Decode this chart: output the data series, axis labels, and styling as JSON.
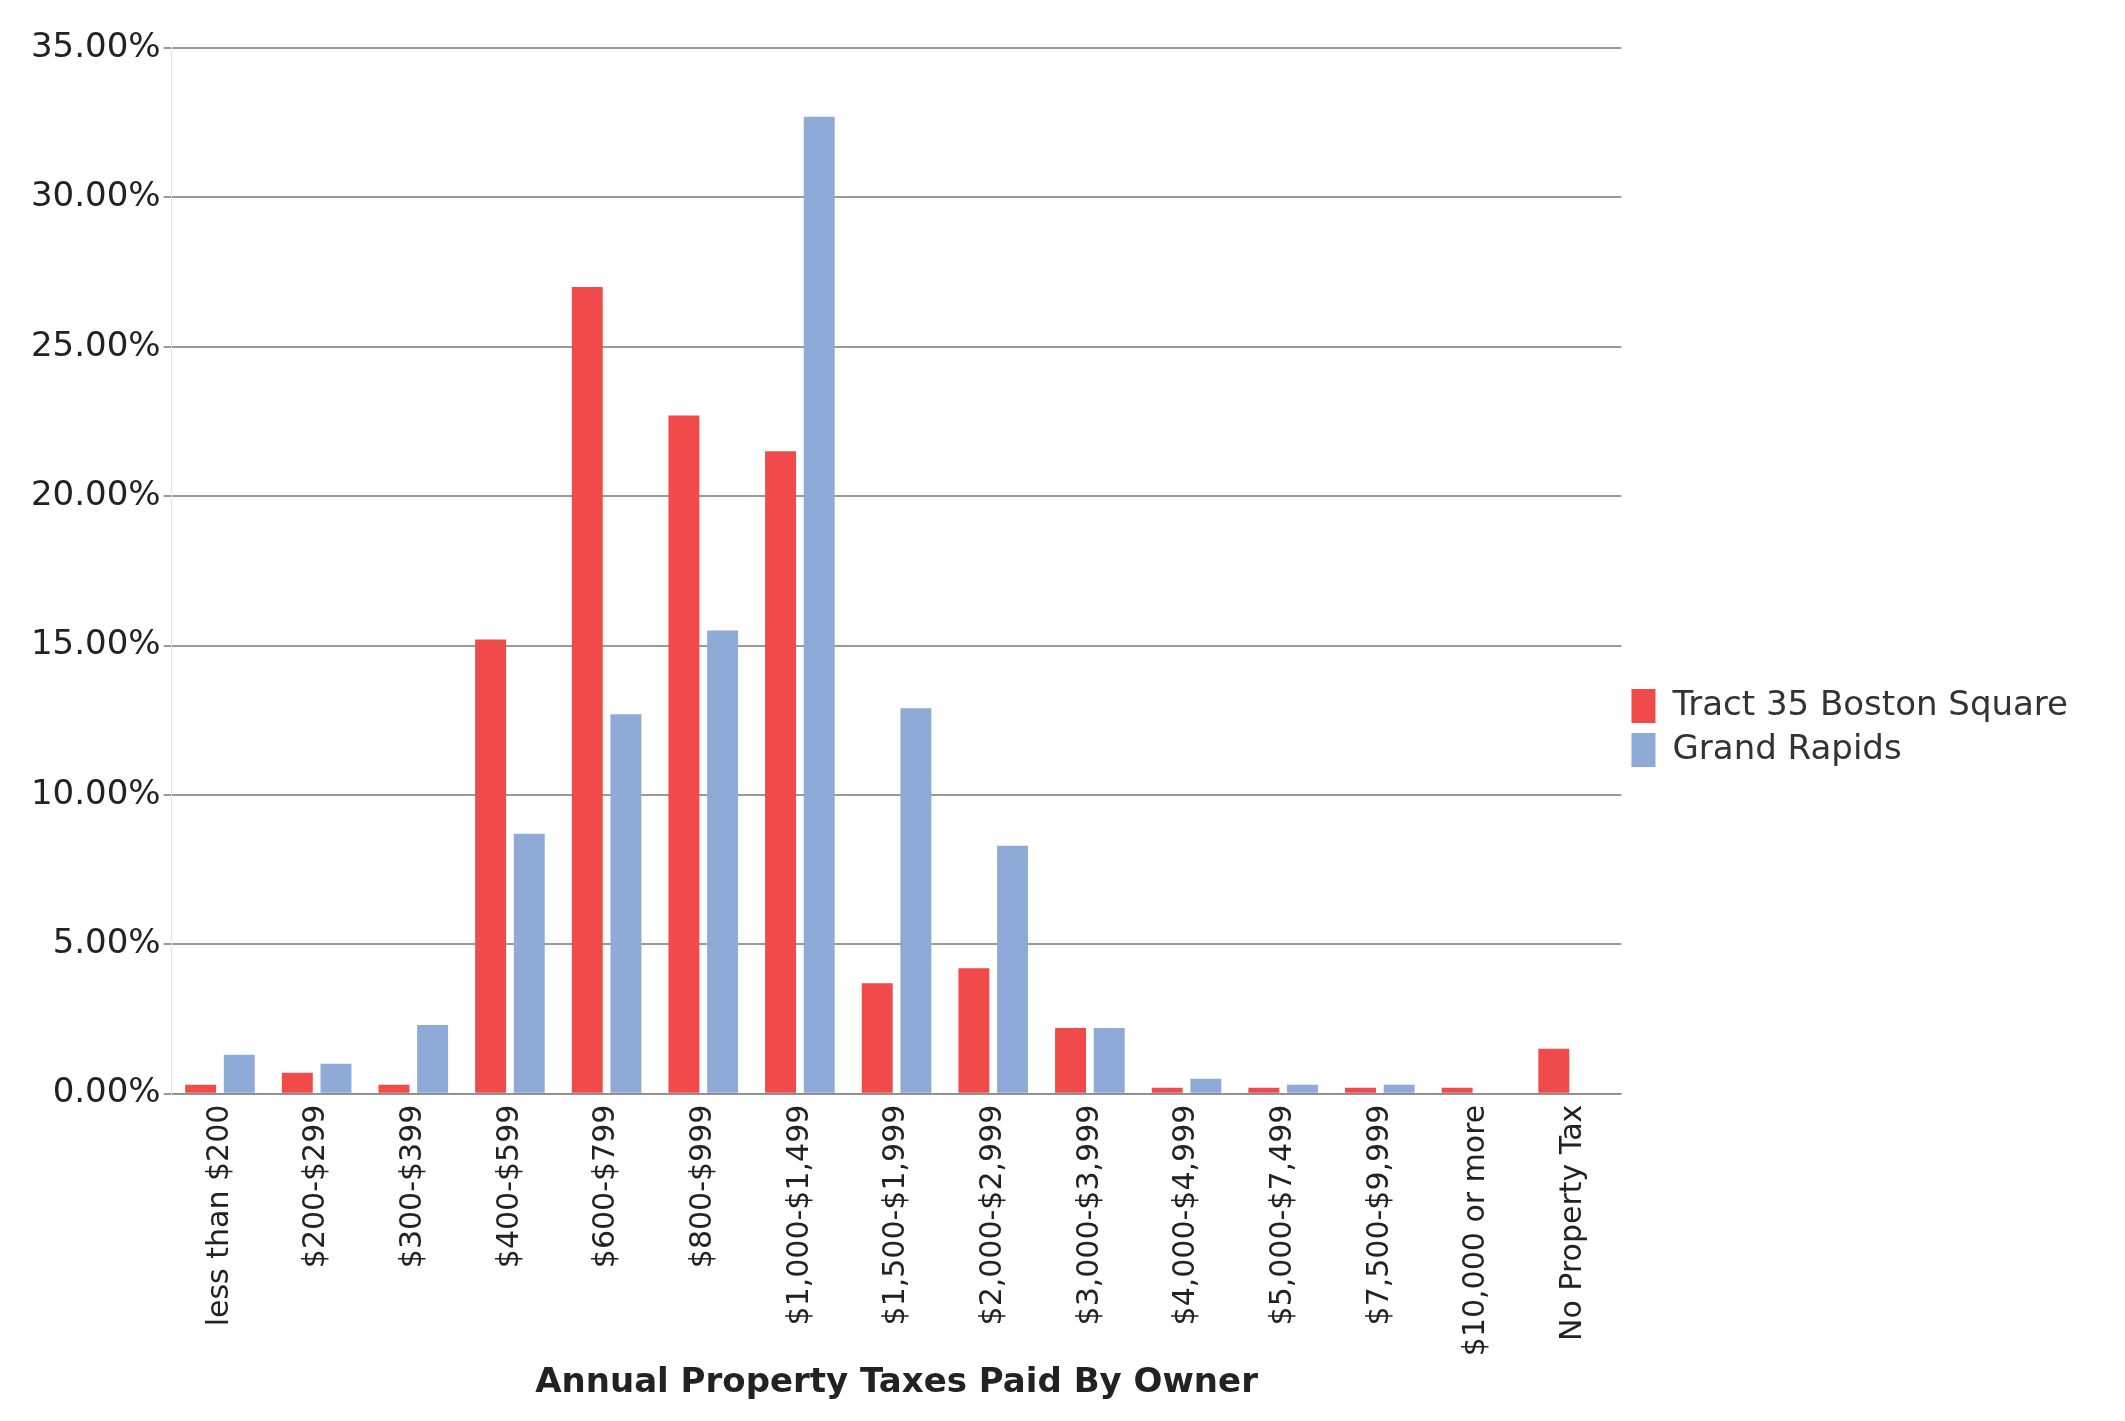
{
  "chart_data": {
    "type": "bar",
    "xlabel": "Annual Property Taxes Paid By Owner",
    "categories": [
      "less than $200",
      "$200-$299",
      "$300-$399",
      "$400-$599",
      "$600-$799",
      "$800-$999",
      "$1,000-$1,499",
      "$1,500-$1,999",
      "$2,000-$2,999",
      "$3,000-$3,999",
      "$4,000-$4,999",
      "$5,000-$7,499",
      "$7,500-$9,999",
      "$10,000 or more",
      "No Property Tax"
    ],
    "series": [
      {
        "name": "Tract 35 Boston Square",
        "color": "#f04a4a",
        "values": [
          0.3,
          0.7,
          0.3,
          15.2,
          27.0,
          22.7,
          21.5,
          3.7,
          4.2,
          2.2,
          0.2,
          0.2,
          0.2,
          0.2,
          1.5
        ]
      },
      {
        "name": "Grand Rapids",
        "color": "#8eaad6",
        "values": [
          1.3,
          1.0,
          2.3,
          8.7,
          12.7,
          15.5,
          32.7,
          12.9,
          8.3,
          2.2,
          0.5,
          0.3,
          0.3,
          0,
          null
        ]
      }
    ],
    "ylim": [
      0,
      35
    ],
    "yticks": [
      {
        "value": 0,
        "label": "0.00%"
      },
      {
        "value": 5,
        "label": "5.00%"
      },
      {
        "value": 10,
        "label": "10.00%"
      },
      {
        "value": 15,
        "label": "15.00%"
      },
      {
        "value": 20,
        "label": "20.00%"
      },
      {
        "value": 25,
        "label": "25.00%"
      },
      {
        "value": 30,
        "label": "30.00%"
      },
      {
        "value": 35,
        "label": "35.00%"
      }
    ],
    "grid": "y",
    "legend": "right"
  }
}
